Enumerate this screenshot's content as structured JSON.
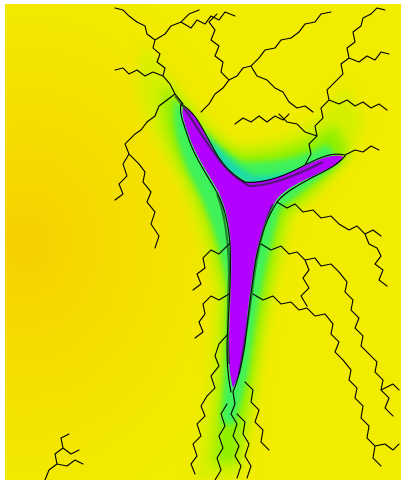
{
  "colors": {
    "far_background": "#f5d300",
    "outer_band": "#f1f000",
    "mid_band": "#c6f200",
    "inner_band": "#6af218",
    "deep_band": "#18e098",
    "set_interior": "#b400ff",
    "filament": "#000000",
    "frame": "#ffffff"
  }
}
